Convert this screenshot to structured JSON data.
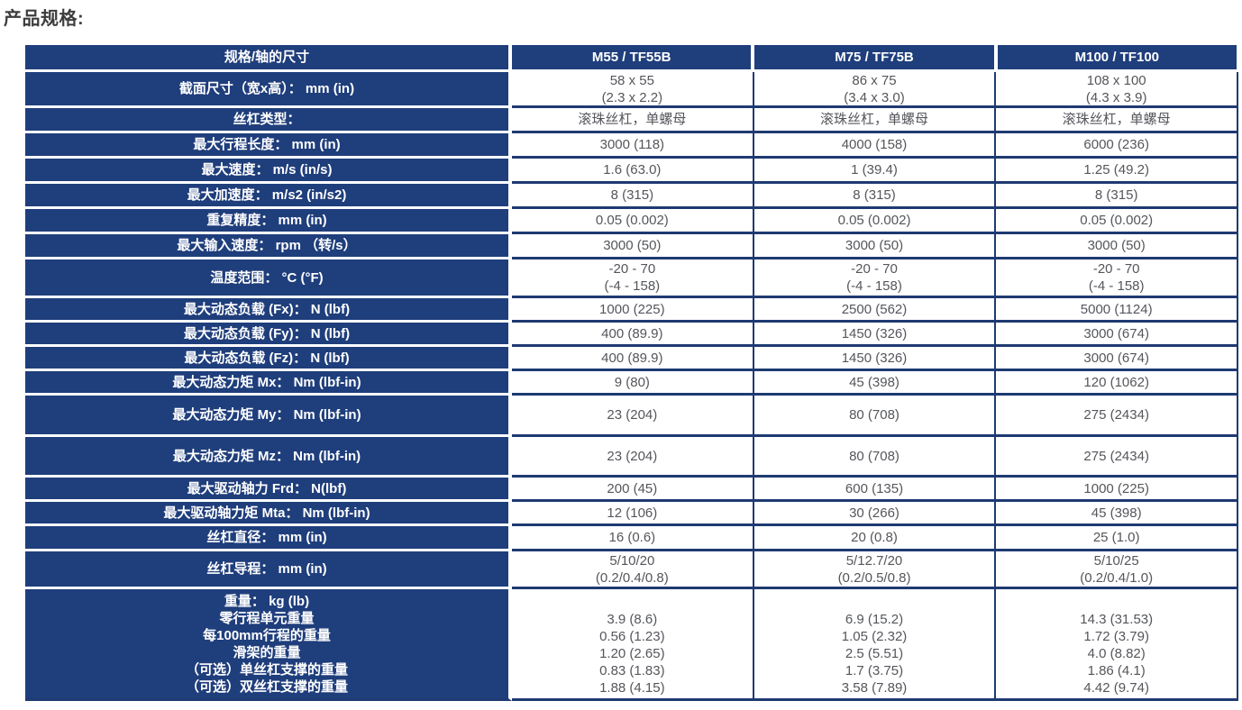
{
  "title": "产品规格:",
  "colors": {
    "header_bg": "#1f3e7c",
    "border": "#1e3a72",
    "value_text": "#54565b"
  },
  "table": {
    "header_label": "规格/轴的尺寸",
    "model_columns": [
      "M55 / TF55B",
      "M75 / TF75B",
      "M100 / TF100"
    ],
    "rows": [
      {
        "label": [
          "截面尺寸（宽x高）： mm (in)"
        ],
        "values": [
          [
            "58 x 55",
            "(2.3 x 2.2)"
          ],
          [
            "86 x 75",
            "(3.4 x 3.0)"
          ],
          [
            "108 x 100",
            "(4.3 x 3.9)"
          ]
        ]
      },
      {
        "label": [
          "丝杠类型："
        ],
        "values": [
          [
            "滚珠丝杠，单螺母"
          ],
          [
            "滚珠丝杠，单螺母"
          ],
          [
            "滚珠丝杠，单螺母"
          ]
        ]
      },
      {
        "label": [
          "最大行程长度： mm (in)"
        ],
        "values": [
          [
            "3000 (118)"
          ],
          [
            "4000 (158)"
          ],
          [
            "6000 (236)"
          ]
        ]
      },
      {
        "label": [
          "最大速度： m/s (in/s)"
        ],
        "values": [
          [
            "1.6 (63.0)"
          ],
          [
            "1 (39.4)"
          ],
          [
            "1.25 (49.2)"
          ]
        ]
      },
      {
        "label": [
          "最大加速度： m/s2 (in/s2)"
        ],
        "values": [
          [
            "8 (315)"
          ],
          [
            "8 (315)"
          ],
          [
            "8 (315)"
          ]
        ]
      },
      {
        "label": [
          "重复精度： mm (in)"
        ],
        "values": [
          [
            "0.05 (0.002)"
          ],
          [
            "0.05 (0.002)"
          ],
          [
            "0.05 (0.002)"
          ]
        ]
      },
      {
        "label": [
          "最大输入速度： rpm （转/s）"
        ],
        "values": [
          [
            "3000 (50)"
          ],
          [
            "3000 (50)"
          ],
          [
            "3000 (50)"
          ]
        ]
      },
      {
        "label": [
          "温度范围： °C (°F)"
        ],
        "values": [
          [
            "-20 - 70",
            "(-4 - 158)"
          ],
          [
            "-20 - 70",
            "(-4 - 158)"
          ],
          [
            "-20 - 70",
            "(-4 - 158)"
          ]
        ]
      },
      {
        "label": [
          "最大动态负载 (Fx)： N (lbf)"
        ],
        "values": [
          [
            "1000 (225)"
          ],
          [
            "2500 (562)"
          ],
          [
            "5000 (1124)"
          ]
        ]
      },
      {
        "label": [
          "最大动态负载 (Fy)： N (lbf)"
        ],
        "values": [
          [
            "400 (89.9)"
          ],
          [
            "1450 (326)"
          ],
          [
            "3000 (674)"
          ]
        ]
      },
      {
        "label": [
          "最大动态负载 (Fz)： N (lbf)"
        ],
        "values": [
          [
            "400 (89.9)"
          ],
          [
            "1450 (326)"
          ],
          [
            "3000 (674)"
          ]
        ]
      },
      {
        "label": [
          "最大动态力矩 Mx： Nm (lbf-in)"
        ],
        "values": [
          [
            "9 (80)"
          ],
          [
            "45 (398)"
          ],
          [
            "120 (1062)"
          ]
        ]
      },
      {
        "label": [
          "最大动态力矩 My： Nm (lbf-in)"
        ],
        "values": [
          [
            "23 (204)"
          ],
          [
            "80 (708)"
          ],
          [
            "275 (2434)"
          ]
        ]
      },
      {
        "label": [
          "最大动态力矩 Mz： Nm (lbf-in)"
        ],
        "values": [
          [
            "23 (204)"
          ],
          [
            "80 (708)"
          ],
          [
            "275 (2434)"
          ]
        ]
      },
      {
        "label": [
          "最大驱动轴力 Frd： N(lbf)"
        ],
        "values": [
          [
            "200 (45)"
          ],
          [
            "600 (135)"
          ],
          [
            "1000 (225)"
          ]
        ]
      },
      {
        "label": [
          "最大驱动轴力矩 Mta： Nm (lbf-in)"
        ],
        "values": [
          [
            "12 (106)"
          ],
          [
            "30 (266)"
          ],
          [
            "45 (398)"
          ]
        ]
      },
      {
        "label": [
          "丝杠直径： mm (in)"
        ],
        "values": [
          [
            "16 (0.6)"
          ],
          [
            "20 (0.8)"
          ],
          [
            "25 (1.0)"
          ]
        ]
      },
      {
        "label": [
          "丝杠导程： mm (in)"
        ],
        "values": [
          [
            "5/10/20",
            "(0.2/0.4/0.8)"
          ],
          [
            "5/12.7/20",
            "(0.2/0.5/0.8)"
          ],
          [
            "5/10/25",
            "(0.2/0.4/1.0)"
          ]
        ]
      },
      {
        "label": [
          "重量： kg (lb)",
          "零行程单元重量",
          "每100mm行程的重量",
          "滑架的重量",
          "（可选）单丝杠支撑的重量",
          "（可选）双丝杠支撑的重量"
        ],
        "values": [
          [
            "3.9 (8.6)",
            "0.56 (1.23)",
            "1.20 (2.65)",
            "0.83 (1.83)",
            "1.88 (4.15)"
          ],
          [
            "6.9 (15.2)",
            "1.05 (2.32)",
            "2.5 (5.51)",
            "1.7 (3.75)",
            "3.58 (7.89)"
          ],
          [
            "14.3 (31.53)",
            "1.72 (3.79)",
            "4.0 (8.82)",
            "1.86 (4.1)",
            "4.42 (9.74)"
          ]
        ]
      }
    ]
  }
}
